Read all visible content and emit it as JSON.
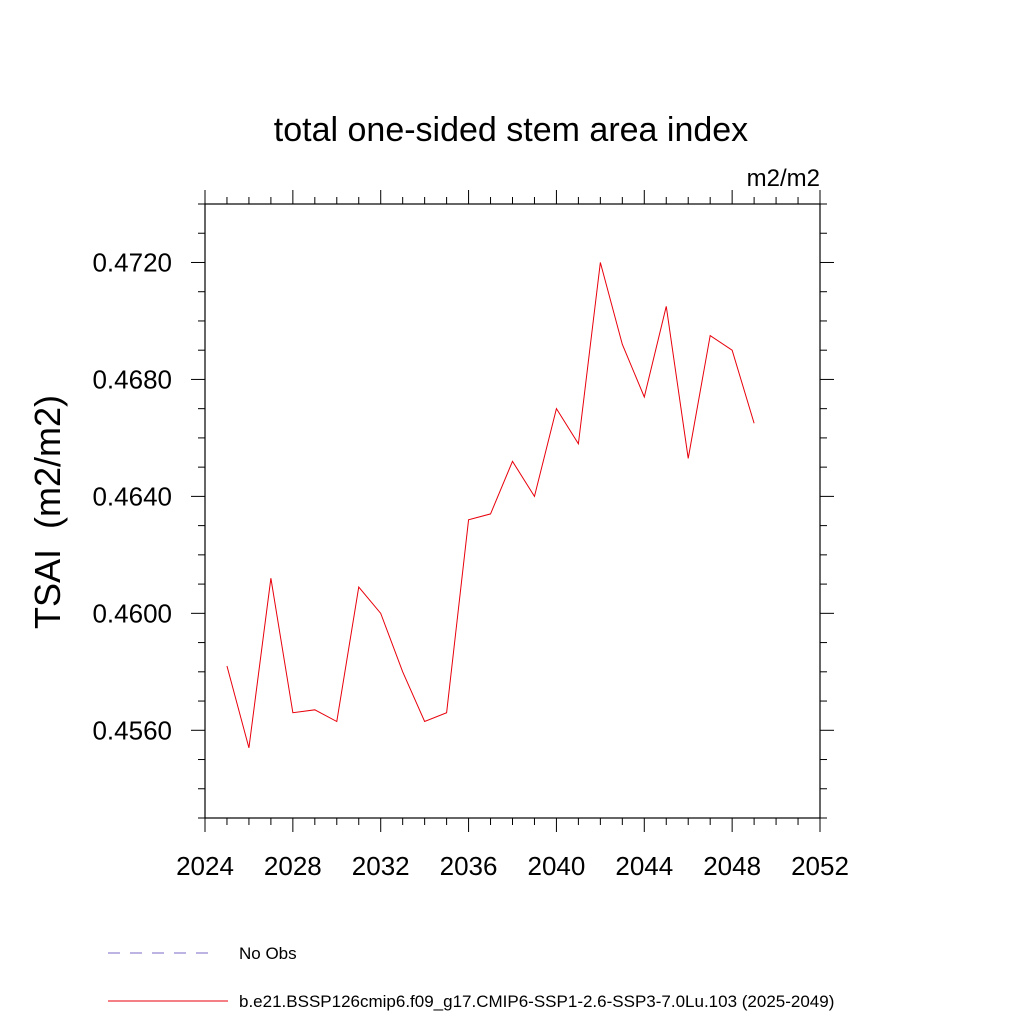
{
  "chart_data": {
    "type": "line",
    "title": "total one-sided stem area index",
    "units_label": "m2/m2",
    "ylabel": "TSAI  (m2/m2)",
    "xlabel": "",
    "xlim": [
      2024,
      2052
    ],
    "ylim": [
      0.453,
      0.474
    ],
    "x_ticks": [
      2024,
      2028,
      2032,
      2036,
      2040,
      2044,
      2048,
      2052
    ],
    "x_tick_labels": [
      "2024",
      "2028",
      "2032",
      "2036",
      "2040",
      "2044",
      "2048",
      "2052"
    ],
    "y_ticks": [
      0.456,
      0.46,
      0.464,
      0.468,
      0.472
    ],
    "y_tick_labels": [
      "0.4560",
      "0.4600",
      "0.4640",
      "0.4680",
      "0.4720"
    ],
    "grid": false,
    "legend_position": "bottom",
    "series": [
      {
        "name": "b.e21.BSSP126cmip6.f09_g17.CMIP6-SSP1-2.6-SSP3-7.0Lu.103 (2025-2049)",
        "color": "#e8000b",
        "style": "solid",
        "x": [
          2025,
          2026,
          2027,
          2028,
          2029,
          2030,
          2031,
          2032,
          2033,
          2034,
          2035,
          2036,
          2037,
          2038,
          2039,
          2040,
          2041,
          2042,
          2043,
          2044,
          2045,
          2046,
          2047,
          2048,
          2049
        ],
        "values": [
          0.4582,
          0.4554,
          0.4612,
          0.4566,
          0.4567,
          0.4563,
          0.4609,
          0.46,
          0.458,
          0.4563,
          0.4566,
          0.4632,
          0.4634,
          0.4652,
          0.464,
          0.467,
          0.4658,
          0.472,
          0.4692,
          0.4674,
          0.4705,
          0.4653,
          0.4695,
          0.469,
          0.4665
        ]
      }
    ],
    "legend": [
      {
        "label": "No Obs",
        "color": "#7b68c8",
        "style": "dashed"
      },
      {
        "label": "b.e21.BSSP126cmip6.f09_g17.CMIP6-SSP1-2.6-SSP3-7.0Lu.103 (2025-2049)",
        "color": "#e8000b",
        "style": "solid"
      }
    ]
  }
}
